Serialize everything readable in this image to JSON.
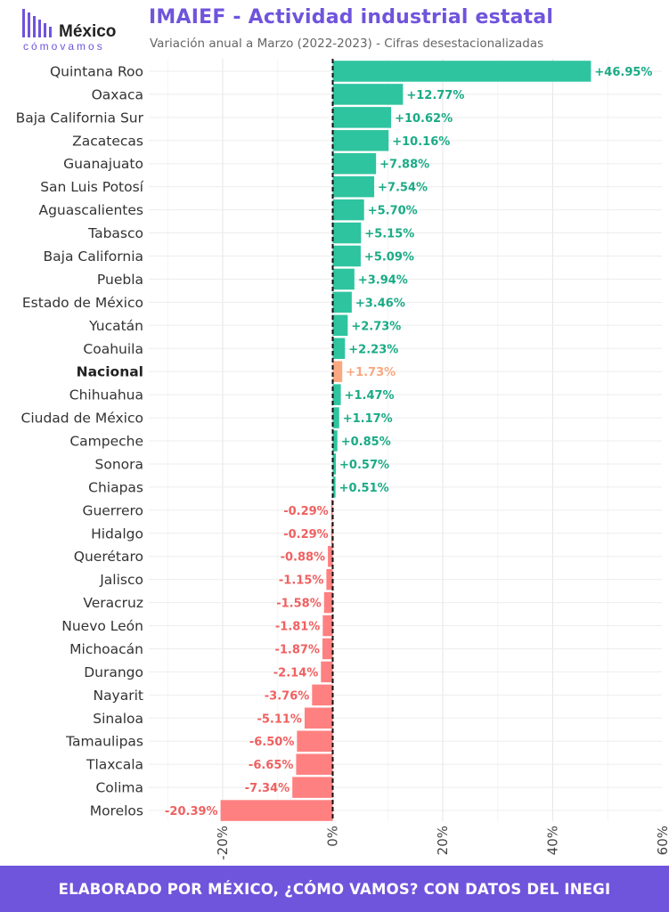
{
  "header": {
    "logo_text": "México",
    "logo_sub": "cómovamos",
    "title": "IMAIEF - Actividad industrial estatal",
    "subtitle": "Variación anual a Marzo (2022-2023) - Cifras desestacionalizadas"
  },
  "colors": {
    "accent": "#6f54dc",
    "positive": "#2ec4a0",
    "positive_text": "#1aab86",
    "negative": "#ff8080",
    "negative_text": "#f06060",
    "national": "#f9a880"
  },
  "chart_data": {
    "type": "bar",
    "orientation": "horizontal",
    "title": "IMAIEF - Actividad industrial estatal",
    "subtitle": "Variación anual a Marzo (2022-2023) - Cifras desestacionalizadas",
    "xlabel": "",
    "ylabel": "",
    "xlim": [
      -20,
      60
    ],
    "x_ticks": [
      -20,
      0,
      20,
      40,
      60
    ],
    "x_tick_labels": [
      "-20%",
      "0%",
      "20%",
      "40%",
      "60%"
    ],
    "grid": true,
    "highlight": "Nacional",
    "categories": [
      "Quintana Roo",
      "Oaxaca",
      "Baja California Sur",
      "Zacatecas",
      "Guanajuato",
      "San Luis Potosí",
      "Aguascalientes",
      "Tabasco",
      "Baja California",
      "Puebla",
      "Estado de México",
      "Yucatán",
      "Coahuila",
      "Nacional",
      "Chihuahua",
      "Ciudad de México",
      "Campeche",
      "Sonora",
      "Chiapas",
      "Guerrero",
      "Hidalgo",
      "Querétaro",
      "Jalisco",
      "Veracruz",
      "Nuevo León",
      "Michoacán",
      "Durango",
      "Nayarit",
      "Sinaloa",
      "Tamaulipas",
      "Tlaxcala",
      "Colima",
      "Morelos"
    ],
    "values": [
      46.95,
      12.77,
      10.62,
      10.16,
      7.88,
      7.54,
      5.7,
      5.15,
      5.09,
      3.94,
      3.46,
      2.73,
      2.23,
      1.73,
      1.47,
      1.17,
      0.85,
      0.57,
      0.51,
      -0.29,
      -0.29,
      -0.88,
      -1.15,
      -1.58,
      -1.81,
      -1.87,
      -2.14,
      -3.76,
      -5.11,
      -6.5,
      -6.65,
      -7.34,
      -20.39
    ],
    "value_labels": [
      "+46.95%",
      "+12.77%",
      "+10.62%",
      "+10.16%",
      "+7.88%",
      "+7.54%",
      "+5.70%",
      "+5.15%",
      "+5.09%",
      "+3.94%",
      "+3.46%",
      "+2.73%",
      "+2.23%",
      "+1.73%",
      "+1.47%",
      "+1.17%",
      "+0.85%",
      "+0.57%",
      "+0.51%",
      "-0.29%",
      "-0.29%",
      "-0.88%",
      "-1.15%",
      "-1.58%",
      "-1.81%",
      "-1.87%",
      "-2.14%",
      "-3.76%",
      "-5.11%",
      "-6.50%",
      "-6.65%",
      "-7.34%",
      "-20.39%"
    ]
  },
  "footer": {
    "text": "ELABORADO POR MÉXICO, ¿CÓMO VAMOS? CON DATOS DEL INEGI"
  }
}
